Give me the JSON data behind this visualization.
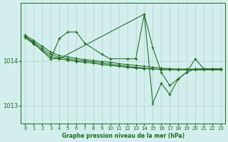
{
  "bg_color": "#d4eeee",
  "grid_color": "#b0d0d0",
  "line_color": "#1a6b1a",
  "marker_color": "#1a6b1a",
  "xlabel": "Graphe pression niveau de la mer (hPa)",
  "ylim": [
    1012.6,
    1015.3
  ],
  "yticks": [
    1013,
    1014
  ],
  "xticks": [
    0,
    1,
    2,
    3,
    4,
    5,
    6,
    7,
    8,
    9,
    10,
    11,
    12,
    13,
    14,
    15,
    16,
    17,
    18,
    19,
    20,
    21,
    22,
    23
  ],
  "series": [
    {
      "x": [
        0,
        1,
        3,
        4,
        5,
        6,
        7,
        9,
        10,
        12,
        13,
        14,
        15,
        16,
        17,
        18,
        19,
        20,
        21,
        22,
        23
      ],
      "y": [
        1014.55,
        1014.4,
        1014.05,
        1014.5,
        1014.65,
        1014.65,
        1014.4,
        1014.15,
        1014.05,
        1014.05,
        1014.05,
        1015.05,
        1014.3,
        1013.75,
        1013.45,
        1013.6,
        1013.75,
        1014.05,
        1013.82,
        1013.82,
        1013.82
      ]
    },
    {
      "x": [
        0,
        1,
        2,
        3,
        4,
        5,
        6,
        7,
        8,
        9,
        10,
        11,
        12,
        13,
        14,
        15,
        16,
        17,
        18,
        19,
        20,
        21,
        22,
        23
      ],
      "y": [
        1014.55,
        1014.42,
        1014.28,
        1014.15,
        1014.08,
        1014.05,
        1014.02,
        1014.0,
        1013.98,
        1013.95,
        1013.93,
        1013.9,
        1013.88,
        1013.86,
        1013.84,
        1013.82,
        1013.81,
        1013.8,
        1013.8,
        1013.8,
        1013.8,
        1013.8,
        1013.8,
        1013.8
      ]
    },
    {
      "x": [
        0,
        1,
        2,
        3,
        4,
        5,
        6,
        7,
        8,
        9,
        10,
        11,
        12,
        13,
        14,
        15,
        16,
        17,
        18,
        19,
        20,
        21,
        22,
        23
      ],
      "y": [
        1014.58,
        1014.46,
        1014.33,
        1014.2,
        1014.12,
        1014.09,
        1014.06,
        1014.03,
        1014.01,
        1013.99,
        1013.97,
        1013.94,
        1013.92,
        1013.9,
        1013.88,
        1013.86,
        1013.84,
        1013.83,
        1013.82,
        1013.82,
        1013.82,
        1013.82,
        1013.82,
        1013.82
      ]
    },
    {
      "x": [
        0,
        1,
        2,
        3,
        4,
        5,
        6,
        7,
        8,
        9,
        10,
        11,
        12,
        13,
        14,
        15,
        16,
        17,
        18,
        19,
        20,
        21,
        22,
        23
      ],
      "y": [
        1014.52,
        1014.38,
        1014.24,
        1014.1,
        1014.05,
        1014.02,
        1013.99,
        1013.97,
        1013.95,
        1013.92,
        1013.9,
        1013.88,
        1013.86,
        1013.84,
        1013.83,
        1013.82,
        1013.81,
        1013.8,
        1013.8,
        1013.8,
        1013.8,
        1013.8,
        1013.8,
        1013.8
      ]
    },
    {
      "x": [
        3,
        4,
        14,
        15,
        16,
        17,
        18,
        19,
        20,
        21,
        22,
        23
      ],
      "y": [
        1014.05,
        1014.05,
        1015.05,
        1013.05,
        1013.5,
        1013.25,
        1013.6,
        1013.75,
        1013.82,
        1013.82,
        1013.82,
        1013.82
      ]
    }
  ]
}
